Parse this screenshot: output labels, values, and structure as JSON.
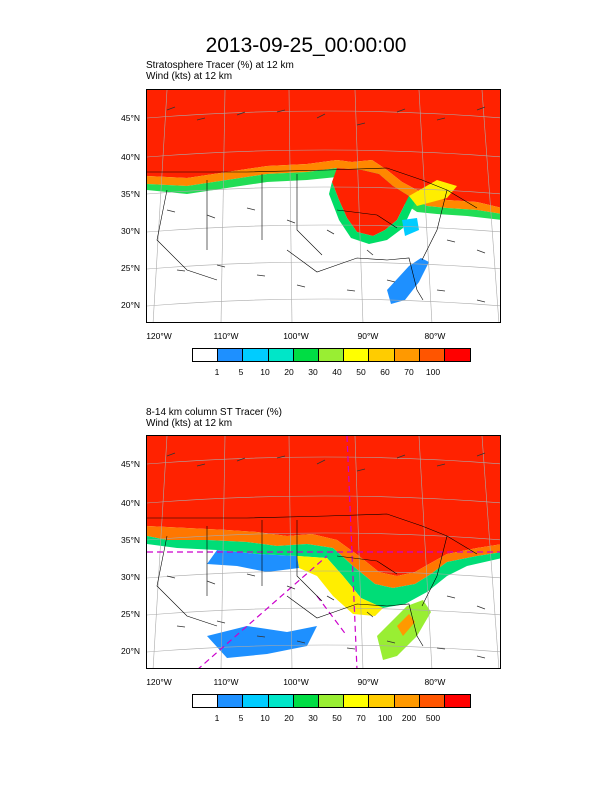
{
  "title": "2013-09-25_00:00:00",
  "panels": [
    {
      "subtitle_line1": "Stratosphere Tracer   (%)     at   12 km",
      "subtitle_line2": "Wind   (kts)     at   12 km",
      "lat_labels": [
        "45°N",
        "40°N",
        "35°N",
        "30°N",
        "25°N",
        "20°N"
      ],
      "lon_labels": [
        "120°W",
        "110°W",
        "100°W",
        "90°W",
        "80°W"
      ],
      "colorbar_labels": [
        "1",
        "5",
        "10",
        "20",
        "30",
        "40",
        "50",
        "60",
        "70",
        "100"
      ]
    },
    {
      "subtitle_line1": "8-14 km column ST Tracer   (%)",
      "subtitle_line2": "Wind   (kts)     at   12 km",
      "lat_labels": [
        "45°N",
        "40°N",
        "35°N",
        "30°N",
        "25°N",
        "20°N"
      ],
      "lon_labels": [
        "120°W",
        "110°W",
        "100°W",
        "90°W",
        "80°W"
      ],
      "colorbar_labels": [
        "1",
        "5",
        "10",
        "20",
        "30",
        "50",
        "70",
        "100",
        "200",
        "500"
      ]
    }
  ],
  "colors": [
    "#ffffff",
    "#1e90ff",
    "#00ccff",
    "#00e6c8",
    "#00dd44",
    "#99ee33",
    "#ffff00",
    "#ffcc00",
    "#ff9900",
    "#ff5500",
    "#ff0000"
  ],
  "colors_hint": "fill palette low-to-high"
}
